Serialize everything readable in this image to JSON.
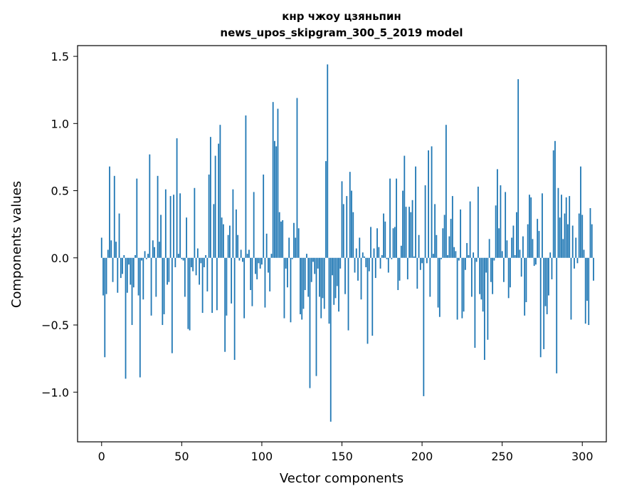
{
  "chart_data": {
    "type": "bar",
    "title": "кнр чжоу цзяньпин",
    "subtitle": "news_upos_skipgram_300_5_2019 model",
    "xlabel": "Vector components",
    "ylabel": "Components values",
    "xlim": [
      -15,
      315
    ],
    "ylim": [
      -1.37,
      1.58
    ],
    "xticks": [
      0,
      50,
      100,
      150,
      200,
      250,
      300
    ],
    "xtick_labels": [
      "0",
      "50",
      "100",
      "150",
      "200",
      "250",
      "300"
    ],
    "yticks": [
      -1.0,
      -0.5,
      0.0,
      0.5,
      1.0,
      1.5
    ],
    "ytick_labels": [
      "−1.0",
      "−0.5",
      "0.0",
      "0.5",
      "1.0",
      "1.5"
    ],
    "grid": false,
    "bar_color": "#1f77b4",
    "values": [
      0.15,
      -0.28,
      -0.74,
      -0.27,
      0.06,
      0.68,
      0.13,
      -0.18,
      0.61,
      0.12,
      -0.26,
      0.33,
      -0.15,
      -0.12,
      0.02,
      -0.9,
      -0.26,
      -0.05,
      -0.2,
      -0.5,
      -0.22,
      0.02,
      0.59,
      -0.28,
      -0.89,
      -0.02,
      -0.31,
      0.05,
      -0.01,
      0.03,
      0.77,
      -0.43,
      0.13,
      0.08,
      -0.29,
      0.61,
      0.12,
      0.32,
      -0.5,
      -0.42,
      0.51,
      -0.2,
      -0.18,
      0.46,
      -0.71,
      0.47,
      -0.07,
      0.89,
      0.03,
      0.48,
      -0.01,
      -0.02,
      -0.29,
      0.3,
      -0.53,
      -0.54,
      -0.07,
      -0.1,
      0.52,
      -0.13,
      0.07,
      -0.2,
      -0.04,
      -0.41,
      -0.07,
      0.02,
      -0.25,
      0.62,
      0.9,
      -0.41,
      0.4,
      0.76,
      -0.39,
      0.85,
      0.99,
      0.3,
      0.25,
      -0.7,
      -0.43,
      0.17,
      0.24,
      -0.34,
      0.51,
      -0.76,
      0.36,
      0.17,
      -0.02,
      0.06,
      -0.03,
      -0.45,
      1.06,
      0.03,
      0.06,
      -0.24,
      -0.36,
      0.49,
      -0.12,
      -0.16,
      -0.04,
      -0.08,
      -0.05,
      0.62,
      -0.37,
      0.18,
      -0.11,
      -0.25,
      0.03,
      1.16,
      0.87,
      0.83,
      1.11,
      0.34,
      0.27,
      0.28,
      -0.45,
      -0.08,
      -0.22,
      0.15,
      -0.48,
      -0.01,
      0.26,
      0.15,
      1.19,
      0.22,
      -0.42,
      -0.46,
      -0.38,
      -0.24,
      0.03,
      -0.29,
      -0.97,
      -0.18,
      -0.03,
      -0.12,
      -0.88,
      -0.08,
      -0.29,
      -0.45,
      -0.3,
      -0.38,
      0.72,
      1.44,
      -0.49,
      -1.22,
      -0.13,
      -0.35,
      -0.3,
      -0.21,
      -0.4,
      -0.08,
      0.57,
      0.4,
      -0.27,
      0.46,
      -0.54,
      0.64,
      0.5,
      0.34,
      -0.11,
      0.07,
      -0.17,
      0.15,
      -0.31,
      0.04,
      0.01,
      -0.07,
      -0.64,
      -0.1,
      0.23,
      -0.58,
      0.07,
      -0.15,
      0.22,
      0.08,
      -0.08,
      0.02,
      0.33,
      0.27,
      -0.01,
      -0.11,
      0.59,
      -0.01,
      0.22,
      0.23,
      0.59,
      -0.24,
      -0.17,
      0.09,
      0.5,
      0.76,
      0.38,
      -0.16,
      0.38,
      0.34,
      0.43,
      0.01,
      0.68,
      -0.23,
      0.17,
      -0.09,
      -0.04,
      -1.03,
      0.54,
      -0.04,
      0.8,
      -0.29,
      0.83,
      0.03,
      0.4,
      0.17,
      -0.37,
      -0.44,
      -0.01,
      0.22,
      0.32,
      0.99,
      0.02,
      0.16,
      0.29,
      0.46,
      0.08,
      0.05,
      -0.46,
      -0.02,
      0.36,
      -0.45,
      -0.4,
      -0.09,
      0.11,
      0.02,
      0.42,
      -0.29,
      0.04,
      -0.67,
      -0.03,
      0.53,
      -0.27,
      -0.31,
      -0.4,
      -0.76,
      -0.11,
      -0.61,
      0.14,
      -0.18,
      -0.27,
      -0.02,
      0.39,
      0.66,
      0.22,
      0.54,
      0.05,
      -0.18,
      0.49,
      0.13,
      -0.3,
      -0.22,
      0.15,
      0.24,
      0.02,
      0.34,
      1.33,
      0.06,
      -0.14,
      0.16,
      -0.43,
      -0.33,
      0.25,
      0.47,
      0.45,
      0.14,
      -0.06,
      -0.05,
      0.29,
      0.2,
      -0.74,
      0.48,
      -0.68,
      -0.36,
      -0.42,
      -0.28,
      0.04,
      -0.16,
      0.8,
      0.87,
      -0.86,
      0.52,
      0.3,
      0.47,
      0.14,
      0.33,
      0.45,
      0.25,
      0.46,
      -0.46,
      0.24,
      -0.08,
      0.15,
      -0.04,
      0.33,
      0.68,
      0.32,
      0.06,
      -0.49,
      -0.32,
      -0.5,
      0.37,
      0.25,
      -0.17
    ]
  }
}
